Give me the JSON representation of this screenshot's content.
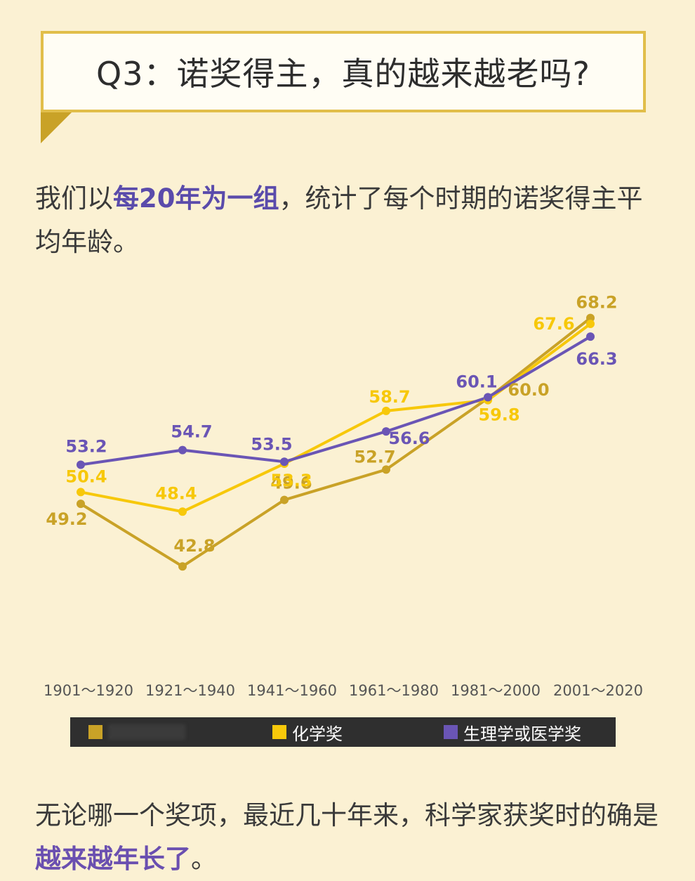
{
  "title": "Q3：诺奖得主，真的越来越老吗?",
  "intro": {
    "part1": "我们以",
    "highlight": "每20年为一组",
    "part2": "，统计了每个时期的诺奖得主平均年龄。"
  },
  "outro": {
    "part1": "无论哪一个奖项，最近几十年来，科学家获奖时的确是",
    "highlight": "越来越年长了",
    "part2": "。"
  },
  "colors": {
    "series1": "#c9a227",
    "series2": "#f7c80a",
    "series3": "#6a55b5",
    "background": "#fbf1d3"
  },
  "chart_data": {
    "type": "line",
    "title": "",
    "xlabel": "",
    "ylabel": "",
    "categories": [
      "1901～1920",
      "1921～1940",
      "1941～1960",
      "1961～1980",
      "1981～2000",
      "2001～2020"
    ],
    "ylim": [
      40,
      70
    ],
    "grid": false,
    "legend_position": "bottom",
    "series": [
      {
        "name": "",
        "color": "#c9a227",
        "values": [
          49.2,
          42.8,
          49.6,
          52.7,
          60.0,
          68.2
        ]
      },
      {
        "name": "化学奖",
        "color": "#f7c80a",
        "values": [
          50.4,
          48.4,
          53.3,
          58.7,
          59.8,
          67.6
        ]
      },
      {
        "name": "生理学或医学奖",
        "color": "#6a55b5",
        "values": [
          53.2,
          54.7,
          53.5,
          56.6,
          60.1,
          66.3
        ]
      }
    ]
  }
}
